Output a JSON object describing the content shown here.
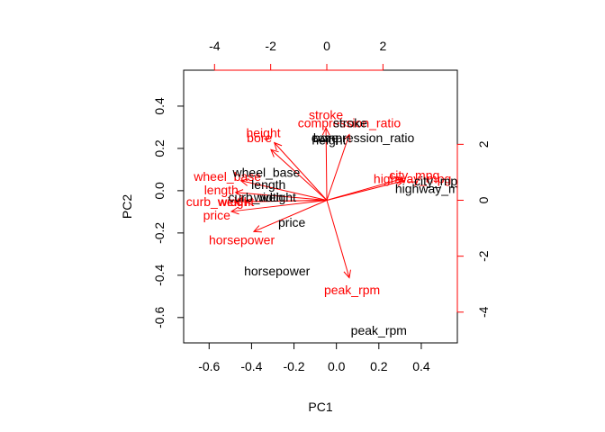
{
  "chart_data": {
    "type": "biplot",
    "xlabel": "PC1",
    "ylabel": "PC2",
    "bottom_axis": {
      "range": [
        -0.72,
        0.57
      ],
      "ticks": [
        -0.6,
        -0.4,
        -0.2,
        0.0,
        0.2,
        0.4
      ],
      "tick_labels": [
        "-0.6",
        "-0.4",
        "-0.2",
        "0.0",
        "0.2",
        "0.4"
      ]
    },
    "left_axis": {
      "range": [
        -0.72,
        0.57
      ],
      "ticks": [
        -0.6,
        -0.4,
        -0.2,
        0.0,
        0.2,
        0.4
      ],
      "tick_labels": [
        "-0.6",
        "-0.4",
        "-0.2",
        "0.0",
        "0.2",
        "0.4"
      ]
    },
    "top_axis": {
      "range": [
        -5.1,
        4.65
      ],
      "ticks": [
        -4,
        -2,
        0,
        2
      ],
      "tick_labels": [
        "-4",
        "-2",
        "0",
        "2"
      ],
      "color": "#ff0000"
    },
    "right_axis": {
      "range": [
        -5.1,
        4.65
      ],
      "ticks": [
        -4,
        -2,
        0,
        2
      ],
      "tick_labels": [
        "-4",
        "-2",
        "0",
        "2"
      ],
      "color": "#ff0000"
    },
    "observations": [
      {
        "label": "wheel_base",
        "x": -0.33,
        "y": 0.087
      },
      {
        "label": "length",
        "x": -0.32,
        "y": 0.03
      },
      {
        "label": "curb_weight",
        "x": -0.35,
        "y": -0.03
      },
      {
        "label": "width",
        "x": -0.32,
        "y": -0.03
      },
      {
        "label": "height",
        "x": -0.035,
        "y": 0.24
      },
      {
        "label": "bore",
        "x": -0.05,
        "y": 0.25
      },
      {
        "label": "stroke",
        "x": 0.065,
        "y": 0.32
      },
      {
        "label": "compression_ratio",
        "x": 0.125,
        "y": 0.25
      },
      {
        "label": "city_mpg",
        "x": 0.485,
        "y": 0.046
      },
      {
        "label": "highway_mpg",
        "x": 0.46,
        "y": 0.01
      },
      {
        "label": "price",
        "x": -0.21,
        "y": -0.15
      },
      {
        "label": "horsepower",
        "x": -0.28,
        "y": -0.38
      },
      {
        "label": "peak_rpm",
        "x": 0.2,
        "y": -0.66
      }
    ],
    "variables": [
      {
        "label": "stroke",
        "x": -0.03,
        "y": 2.59,
        "lx": -0.03,
        "ly": 3.05
      },
      {
        "label": "compression_ratio",
        "x": 0.8,
        "y": 2.35,
        "lx": 0.8,
        "ly": 2.76
      },
      {
        "label": "height",
        "x": -1.87,
        "y": 2.06,
        "lx": -2.26,
        "ly": 2.42
      },
      {
        "label": "bore",
        "x": -1.99,
        "y": 1.81,
        "lx": -2.4,
        "ly": 2.24
      },
      {
        "label": "wheel_base",
        "x": -3.06,
        "y": 0.7,
        "lx": -3.54,
        "ly": 0.85
      },
      {
        "label": "length",
        "x": -3.25,
        "y": 0.28,
        "lx": -3.76,
        "ly": 0.37
      },
      {
        "label": "width",
        "x": -2.9,
        "y": -0.05,
        "lx": -3.35,
        "ly": -0.04
      },
      {
        "label": "curb_weight",
        "x": -3.29,
        "y": -0.06,
        "lx": -3.8,
        "ly": -0.05
      },
      {
        "label": "price",
        "x": -3.4,
        "y": -0.4,
        "lx": -3.92,
        "ly": -0.53
      },
      {
        "label": "horsepower",
        "x": -2.6,
        "y": -1.12,
        "lx": -3.03,
        "ly": -1.42
      },
      {
        "label": "peak_rpm",
        "x": 0.8,
        "y": -2.77,
        "lx": 0.9,
        "ly": -3.2
      },
      {
        "label": "city_mpg",
        "x": 2.72,
        "y": 0.78,
        "lx": 3.12,
        "ly": 0.9
      },
      {
        "label": "highway_mpg",
        "x": 2.75,
        "y": 0.7,
        "lx": 3.05,
        "ly": 0.78
      }
    ]
  }
}
